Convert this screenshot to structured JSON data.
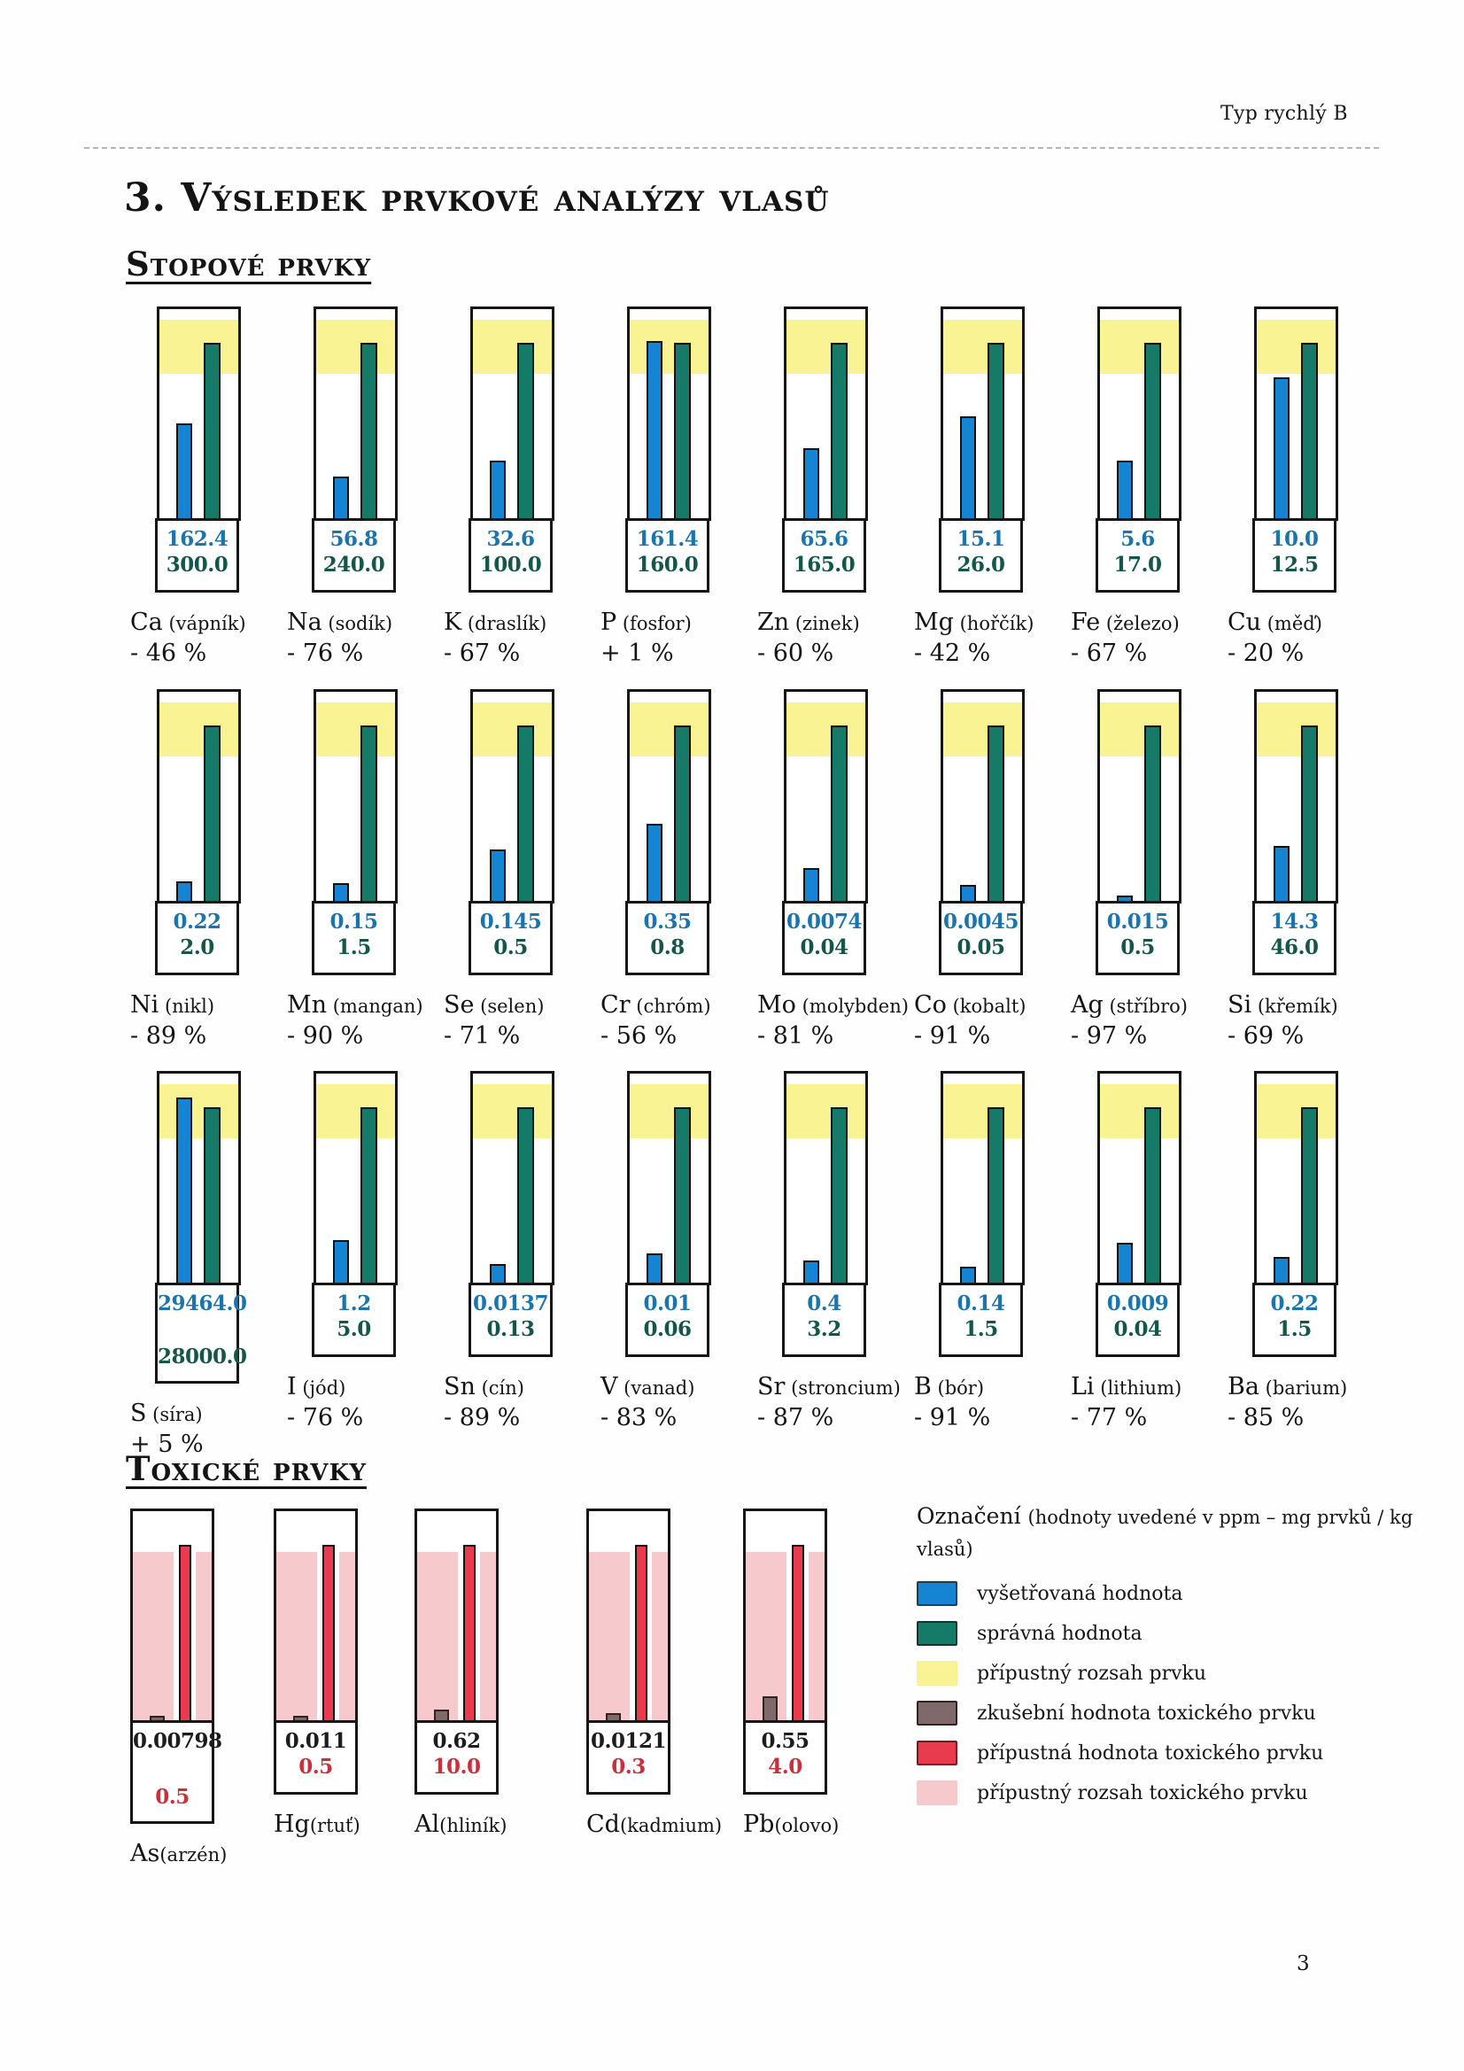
{
  "page": {
    "header_right": "Typ rychlý B",
    "title": "3. Výsledek prvkové analýzy vlasů",
    "page_number": "3"
  },
  "sections": {
    "trace_heading": "Stopové prvky",
    "toxic_heading": "Toxické prvky"
  },
  "colors": {
    "measured_bar": "#1585d3",
    "reference_bar": "#157a68",
    "acceptable_range": "#f9f394",
    "toxic_test_bar": "#80696a",
    "toxic_limit_bar": "#e83b4e",
    "toxic_range": "#f6c9cc",
    "measured_value_text": "#1a74ae",
    "reference_value_text": "#14564a",
    "toxic_limit_text": "#c9303c"
  },
  "chart_data": {
    "type": "bar",
    "unit": "ppm (mg prvků / kg vlasů)",
    "trace_elements": [
      {
        "element": "Ca",
        "name": "vápník",
        "measured": "162.4",
        "reference": "300.0",
        "percent": "- 46 %"
      },
      {
        "element": "Na",
        "name": "sodík",
        "measured": "56.8",
        "reference": "240.0",
        "percent": "- 76 %"
      },
      {
        "element": "K",
        "name": "draslík",
        "measured": "32.6",
        "reference": "100.0",
        "percent": "- 67 %"
      },
      {
        "element": "P",
        "name": "fosfor",
        "measured": "161.4",
        "reference": "160.0",
        "percent": "+ 1 %"
      },
      {
        "element": "Zn",
        "name": "zinek",
        "measured": "65.6",
        "reference": "165.0",
        "percent": "- 60 %"
      },
      {
        "element": "Mg",
        "name": "hořčík",
        "measured": "15.1",
        "reference": "26.0",
        "percent": "- 42 %"
      },
      {
        "element": "Fe",
        "name": "železo",
        "measured": "5.6",
        "reference": "17.0",
        "percent": "- 67 %"
      },
      {
        "element": "Cu",
        "name": "měď",
        "measured": "10.0",
        "reference": "12.5",
        "percent": "- 20 %"
      },
      {
        "element": "Ni",
        "name": "nikl",
        "measured": "0.22",
        "reference": "2.0",
        "percent": "- 89 %"
      },
      {
        "element": "Mn",
        "name": "mangan",
        "measured": "0.15",
        "reference": "1.5",
        "percent": "- 90 %"
      },
      {
        "element": "Se",
        "name": "selen",
        "measured": "0.145",
        "reference": "0.5",
        "percent": "- 71 %"
      },
      {
        "element": "Cr",
        "name": "chróm",
        "measured": "0.35",
        "reference": "0.8",
        "percent": "- 56 %"
      },
      {
        "element": "Mo",
        "name": "molybden",
        "measured": "0.0074",
        "reference": "0.04",
        "percent": "- 81 %"
      },
      {
        "element": "Co",
        "name": "kobalt",
        "measured": "0.0045",
        "reference": "0.05",
        "percent": "- 91 %"
      },
      {
        "element": "Ag",
        "name": "stříbro",
        "measured": "0.015",
        "reference": "0.5",
        "percent": "- 97 %"
      },
      {
        "element": "Si",
        "name": "křemík",
        "measured": "14.3",
        "reference": "46.0",
        "percent": "- 69 %"
      },
      {
        "element": "S",
        "name": "síra",
        "measured": "29464.0",
        "reference": "28000.0",
        "percent": "+ 5 %",
        "tall_box": true
      },
      {
        "element": "I",
        "name": "jód",
        "measured": "1.2",
        "reference": "5.0",
        "percent": "- 76 %"
      },
      {
        "element": "Sn",
        "name": "cín",
        "measured": "0.0137",
        "reference": "0.13",
        "percent": "- 89 %"
      },
      {
        "element": "V",
        "name": "vanad",
        "measured": "0.01",
        "reference": "0.06",
        "percent": "- 83 %"
      },
      {
        "element": "Sr",
        "name": "stroncium",
        "measured": "0.4",
        "reference": "3.2",
        "percent": "- 87 %"
      },
      {
        "element": "B",
        "name": "bór",
        "measured": "0.14",
        "reference": "1.5",
        "percent": "- 91 %"
      },
      {
        "element": "Li",
        "name": "lithium",
        "measured": "0.009",
        "reference": "0.04",
        "percent": "- 77 %"
      },
      {
        "element": "Ba",
        "name": "barium",
        "measured": "0.22",
        "reference": "1.5",
        "percent": "- 85 %"
      }
    ],
    "toxic_elements": [
      {
        "element": "As",
        "name": "arzén",
        "measured": "0.00798",
        "limit": "0.5",
        "tall_box": true
      },
      {
        "element": "Hg",
        "name": "rtuť",
        "measured": "0.011",
        "limit": "0.5"
      },
      {
        "element": "Al",
        "name": "hliník",
        "measured": "0.62",
        "limit": "10.0"
      },
      {
        "element": "Cd",
        "name": "kadmium",
        "measured": "0.0121",
        "limit": "0.3"
      },
      {
        "element": "Pb",
        "name": "olovo",
        "measured": "0.55",
        "limit": "4.0"
      }
    ]
  },
  "legend": {
    "title_main": "Označení",
    "title_paren": "(hodnoty uvedené v ppm – mg prvků / kg vlasů)",
    "items": [
      {
        "label": "vyšetřovaná hodnota",
        "color": "#1585d3",
        "border": "#1b3c55"
      },
      {
        "label": "správná hodnota",
        "color": "#157a68",
        "border": "#103a30"
      },
      {
        "label": "přípustný rozsah prvku",
        "color": "#f9f394",
        "border": "none"
      },
      {
        "label": "zkušební hodnota toxického prvku",
        "color": "#80696a",
        "border": "#2e2422"
      },
      {
        "label": "přípustná hodnota toxického prvku",
        "color": "#e83b4e",
        "border": "#7a1420"
      },
      {
        "label": "přípustný rozsah toxického prvku",
        "color": "#f6c9cc",
        "border": "none"
      }
    ]
  }
}
